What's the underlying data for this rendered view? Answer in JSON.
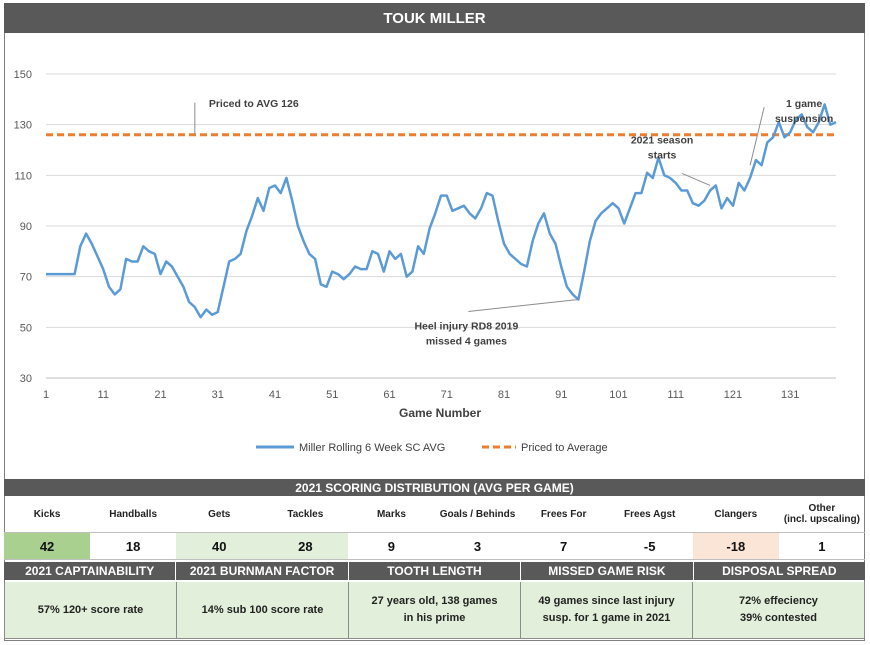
{
  "title": "TOUK MILLER",
  "chart_data": {
    "type": "line",
    "xlabel": "Game Number",
    "ylabel": "",
    "ylim": [
      30,
      150
    ],
    "xlim": [
      1,
      139
    ],
    "yticks": [
      30,
      50,
      70,
      90,
      110,
      130,
      150
    ],
    "xticks": [
      1,
      11,
      21,
      31,
      41,
      51,
      61,
      71,
      81,
      91,
      101,
      111,
      121,
      131
    ],
    "series": [
      {
        "name": "Miller Rolling 6 Week SC AVG",
        "color": "#5b9bd5",
        "x": [
          1,
          2,
          3,
          4,
          5,
          6,
          7,
          8,
          9,
          10,
          11,
          12,
          13,
          14,
          15,
          16,
          17,
          18,
          19,
          20,
          21,
          22,
          23,
          24,
          25,
          26,
          27,
          28,
          29,
          30,
          31,
          32,
          33,
          34,
          35,
          36,
          37,
          38,
          39,
          40,
          41,
          42,
          43,
          44,
          45,
          46,
          47,
          48,
          49,
          50,
          51,
          52,
          53,
          54,
          55,
          56,
          57,
          58,
          59,
          60,
          61,
          62,
          63,
          64,
          65,
          66,
          67,
          68,
          69,
          70,
          71,
          72,
          73,
          74,
          75,
          76,
          77,
          78,
          79,
          80,
          81,
          82,
          83,
          84,
          85,
          86,
          87,
          88,
          89,
          90,
          91,
          92,
          93,
          94,
          95,
          96,
          97,
          98,
          99,
          100,
          101,
          102,
          103,
          104,
          105,
          106,
          107,
          108,
          109,
          110,
          111,
          112,
          113,
          114,
          115,
          116,
          117,
          118,
          119,
          120,
          121,
          122,
          123,
          124,
          125,
          126,
          127,
          128,
          129,
          130,
          131,
          132,
          133,
          134,
          135,
          136,
          137,
          138,
          139
        ],
        "values": [
          71,
          71,
          71,
          71,
          71,
          71,
          82,
          87,
          83,
          78,
          73,
          66,
          63,
          65,
          77,
          76,
          76,
          82,
          80,
          79,
          71,
          76,
          74,
          70,
          66,
          60,
          58,
          54,
          57,
          55,
          56,
          66,
          76,
          77,
          79,
          88,
          94,
          101,
          96,
          105,
          106,
          103,
          109,
          100,
          90,
          84,
          79,
          77,
          67,
          66,
          72,
          71,
          69,
          71,
          74,
          73,
          73,
          80,
          79,
          72,
          80,
          77,
          79,
          70,
          72,
          82,
          79,
          89,
          95,
          102,
          102,
          96,
          97,
          98,
          95,
          93,
          97,
          103,
          102,
          92,
          83,
          79,
          77,
          75,
          74,
          84,
          91,
          95,
          87,
          83,
          74,
          66,
          63,
          61,
          72,
          84,
          92,
          95,
          97,
          99,
          97,
          91,
          97,
          103,
          103,
          111,
          109,
          117,
          110,
          109,
          107,
          104,
          104,
          99,
          98,
          100,
          104,
          106,
          97,
          101,
          98,
          107,
          104,
          109,
          116,
          114,
          123,
          125,
          131,
          125,
          127,
          132,
          134,
          129,
          127,
          131,
          138,
          130,
          131
        ]
      },
      {
        "name": "Priced to Average",
        "color": "#ed7d31",
        "value": 126
      }
    ],
    "annotations": [
      {
        "id": "priced",
        "text": [
          "Priced to AVG 126"
        ],
        "x": 27,
        "y": 126
      },
      {
        "id": "heel",
        "text": [
          "Heel injury RD8 2019",
          "missed 4 games"
        ],
        "x": 94,
        "y": 61
      },
      {
        "id": "season",
        "text": [
          "2021 season",
          "starts"
        ],
        "x": 117,
        "y": 106
      },
      {
        "id": "susp",
        "text": [
          "1 game",
          "suspension"
        ],
        "x": 124,
        "y": 114
      }
    ],
    "legend_position": "bottom-center"
  },
  "distribution": {
    "title": "2021 SCORING DISTRIBUTION (AVG PER GAME)",
    "headers": [
      "Kicks",
      "Handballs",
      "Gets",
      "Tackles",
      "Marks",
      "Goals / Behinds",
      "Frees For",
      "Frees Agst",
      "Clangers",
      "Other\n(incl. upscaling)"
    ],
    "values": [
      "42",
      "18",
      "40",
      "28",
      "9",
      "3",
      "7",
      "-5",
      "-18",
      "1"
    ],
    "highlight": [
      "green",
      "white",
      "lightgreen",
      "lightgreen",
      "white",
      "white",
      "white",
      "white",
      "pink",
      "white"
    ]
  },
  "summary": [
    {
      "head": "2021 CAPTAINABILITY",
      "lines": [
        "57% 120+ score rate"
      ]
    },
    {
      "head": "2021 BURNMAN FACTOR",
      "lines": [
        "14% sub 100 score rate"
      ]
    },
    {
      "head": "TOOTH LENGTH",
      "lines": [
        "27 years old, 138 games",
        "in his prime"
      ]
    },
    {
      "head": "MISSED GAME RISK",
      "lines": [
        "49 games since last injury",
        "susp. for 1 game in 2021"
      ]
    },
    {
      "head": "DISPOSAL SPREAD",
      "lines": [
        "72% effeciency",
        "39% contested"
      ]
    }
  ]
}
